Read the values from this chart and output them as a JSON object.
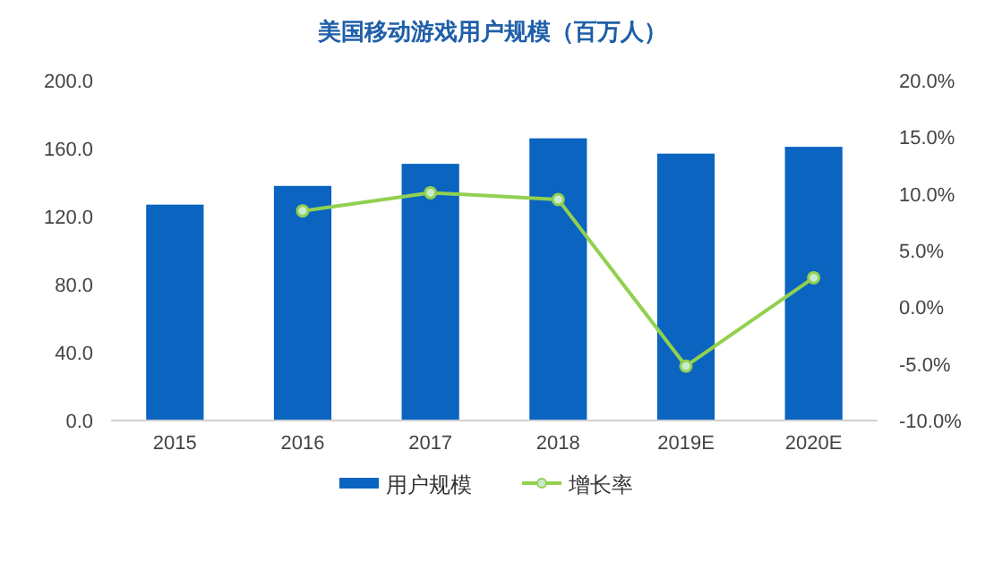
{
  "chart_data": {
    "type": "bar",
    "title": "美国移动游戏用户规模（百万人）",
    "categories": [
      "2015",
      "2016",
      "2017",
      "2018",
      "2019E",
      "2020E"
    ],
    "series": [
      {
        "name": "用户规模",
        "color": "#0a64c0",
        "values": [
          127,
          138,
          151,
          166,
          157,
          161
        ]
      },
      {
        "name": "增长率",
        "type": "line",
        "axis": "y2",
        "color": "#92d050",
        "marker": "circle",
        "values": [
          null,
          8.5,
          10.1,
          9.5,
          -5.2,
          2.6
        ]
      }
    ],
    "ylim": [
      0,
      200
    ],
    "yticks": [
      {
        "value": 0,
        "label": "0.0"
      },
      {
        "value": 40,
        "label": "40.0"
      },
      {
        "value": 80,
        "label": "80.0"
      },
      {
        "value": 120,
        "label": "120.0"
      },
      {
        "value": 160,
        "label": "160.0"
      },
      {
        "value": 200,
        "label": "200.0"
      }
    ],
    "y2lim": [
      -10,
      20
    ],
    "y2ticks": [
      {
        "value": -10,
        "label": "-10.0%"
      },
      {
        "value": -5,
        "label": "-5.0%"
      },
      {
        "value": 0,
        "label": "0.0%"
      },
      {
        "value": 5,
        "label": "5.0%"
      },
      {
        "value": 10,
        "label": "10.0%"
      },
      {
        "value": 15,
        "label": "15.0%"
      },
      {
        "value": 20,
        "label": "20.0%"
      }
    ],
    "legend": "bottom"
  }
}
